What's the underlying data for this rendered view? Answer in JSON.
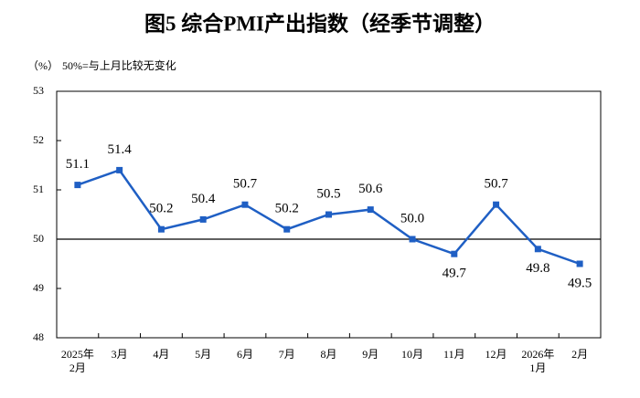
{
  "chart_data": {
    "type": "line",
    "title": "图5  综合PMI产出指数（经季节调整）",
    "y_unit": "（%）",
    "note": "50%=与上月比较无变化",
    "categories": [
      "2025年\n2月",
      "3月",
      "4月",
      "5月",
      "6月",
      "7月",
      "8月",
      "9月",
      "10月",
      "11月",
      "12月",
      "2026年\n1月",
      "2月"
    ],
    "values": [
      51.1,
      51.4,
      50.2,
      50.4,
      50.7,
      50.2,
      50.5,
      50.6,
      50.0,
      49.7,
      50.7,
      49.8,
      49.5
    ],
    "value_labels": [
      "51.1",
      "51.4",
      "50.2",
      "50.4",
      "50.7",
      "50.2",
      "50.5",
      "50.6",
      "50.0",
      "49.7",
      "50.7",
      "49.8",
      "49.5"
    ],
    "color": "#1f5fc4",
    "ylim": [
      48,
      53
    ],
    "yticks": [
      48,
      49,
      50,
      51,
      52,
      53
    ],
    "reference_line": 50
  }
}
